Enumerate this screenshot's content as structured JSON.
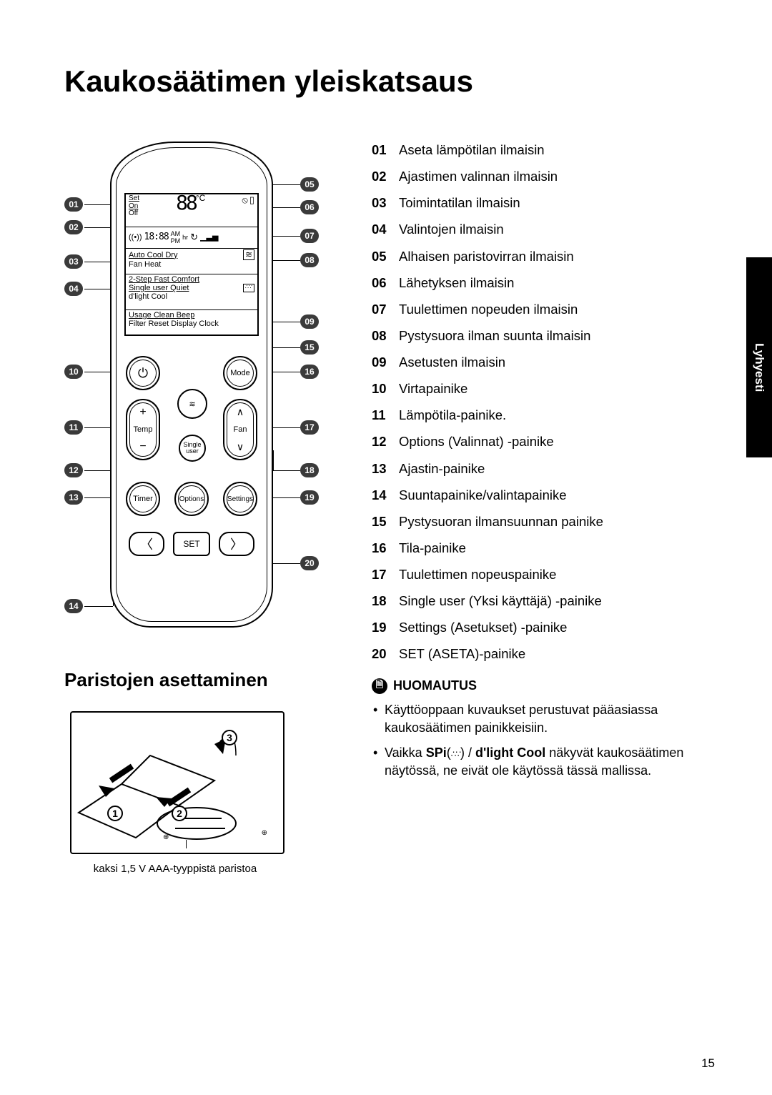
{
  "page_title": "Kaukosäätimen yleiskatsaus",
  "side_tab": "Lyhyesti",
  "page_number": "15",
  "subheading_batteries": "Paristojen asettaminen",
  "battery_caption": "kaksi 1,5 V AAA-tyyppistä paristoa",
  "legend": [
    {
      "num": "01",
      "text": "Aseta lämpötilan ilmaisin"
    },
    {
      "num": "02",
      "text": "Ajastimen valinnan ilmaisin"
    },
    {
      "num": "03",
      "text": "Toimintatilan ilmaisin"
    },
    {
      "num": "04",
      "text": "Valintojen ilmaisin"
    },
    {
      "num": "05",
      "text": "Alhaisen paristovirran ilmaisin"
    },
    {
      "num": "06",
      "text": "Lähetyksen ilmaisin"
    },
    {
      "num": "07",
      "text": "Tuulettimen nopeuden ilmaisin"
    },
    {
      "num": "08",
      "text": "Pystysuora ilman suunta ilmaisin"
    },
    {
      "num": "09",
      "text": "Asetusten ilmaisin"
    },
    {
      "num": "10",
      "text": "Virtapainike"
    },
    {
      "num": "11",
      "text": "Lämpötila-painike."
    },
    {
      "num": "12",
      "text": "Options (Valinnat) -painike"
    },
    {
      "num": "13",
      "text": "Ajastin-painike"
    },
    {
      "num": "14",
      "text": "Suuntapainike/valintapainike"
    },
    {
      "num": "15",
      "text": "Pystysuoran ilmansuunnan painike"
    },
    {
      "num": "16",
      "text": "Tila-painike"
    },
    {
      "num": "17",
      "text": "Tuulettimen nopeuspainike"
    },
    {
      "num": "18",
      "text": "Single user (Yksi käyttäjä) -painike"
    },
    {
      "num": "19",
      "text": "Settings (Asetukset) -painike"
    },
    {
      "num": "20",
      "text": "SET (ASETA)-painike"
    }
  ],
  "note": {
    "heading": "HUOMAUTUS",
    "items": [
      {
        "prefix": "",
        "text": "Käyttöoppaan kuvaukset perustuvat pääasiassa kaukosäätimen painikkeisiin."
      },
      {
        "prefix": "Vaikka ",
        "bold1": "SPi",
        "mid": "(",
        "icon": "⠛",
        "mid2": ") / ",
        "bold2": "d'light Cool",
        "suffix": " näkyvät kaukosäätimen näytössä, ne eivät ole käytössä tässä mallissa."
      }
    ]
  },
  "lcd": {
    "set": "Set",
    "on": "On",
    "off": "Off",
    "segs": "88",
    "degc": "°C",
    "timer_seg": "18:88",
    "ampm_am": "AM",
    "ampm_pm": "PM",
    "hr": "hr",
    "modes_line1": "Auto Cool Dry",
    "modes_line2": "Fan   Heat",
    "opts_line1": "2-Step  Fast  Comfort",
    "opts_line2": "Single user  Quiet",
    "opts_line3": "d'light Cool",
    "set_line1": "Usage Clean Beep",
    "set_line2": "Filter Reset Display Clock"
  },
  "buttons": {
    "mode": "Mode",
    "temp": "Temp",
    "fan": "Fan",
    "single_user": "Single\nuser",
    "timer": "Timer",
    "options": "Options",
    "settings": "Settings",
    "set": "SET"
  },
  "callouts_left": [
    "01",
    "02",
    "03",
    "04",
    "10",
    "11",
    "12",
    "13",
    "14"
  ],
  "callouts_right": [
    "05",
    "06",
    "07",
    "08",
    "09",
    "15",
    "16",
    "17",
    "18",
    "19",
    "20"
  ],
  "battery_steps": [
    "1",
    "2",
    "3"
  ],
  "colors": {
    "badge_bg": "#3a3a3a",
    "text": "#000000",
    "page_bg": "#ffffff"
  }
}
